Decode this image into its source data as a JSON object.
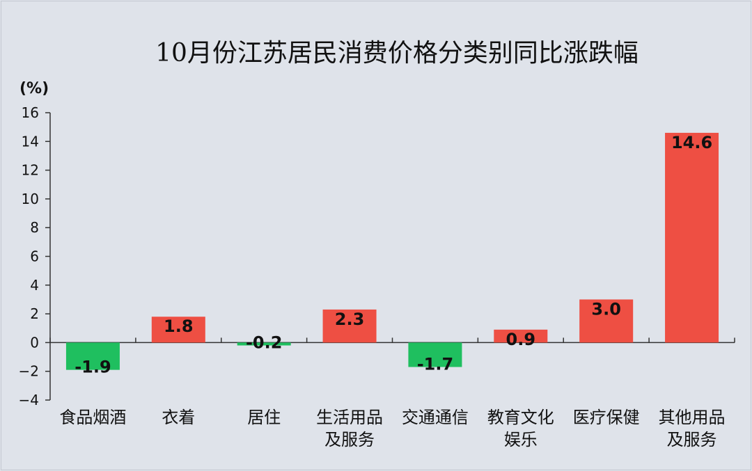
{
  "chart_data": {
    "type": "bar",
    "title": "10月份江苏居民消费价格分类别同比涨跌幅",
    "ylabel": "(%)",
    "ylim": [
      -4,
      16
    ],
    "yticks": [
      "16",
      "14",
      "12",
      "10",
      "8",
      "6",
      "4",
      "2",
      "0",
      "−2",
      "−4"
    ],
    "categories": [
      [
        "食品烟酒"
      ],
      [
        "衣着"
      ],
      [
        "居住"
      ],
      [
        "生活用品",
        "及服务"
      ],
      [
        "交通通信"
      ],
      [
        "教育文化",
        "娱乐"
      ],
      [
        "医疗保健"
      ],
      [
        "其他用品",
        "及服务"
      ]
    ],
    "values": [
      -1.9,
      1.8,
      -0.2,
      2.3,
      -1.7,
      0.9,
      3.0,
      14.6
    ],
    "value_labels": [
      "-1.9",
      "1.8",
      "-0.2",
      "2.3",
      "-1.7",
      "0.9",
      "3.0",
      "14.6"
    ],
    "colors": {
      "positive": "#ee4f43",
      "negative": "#1fbf5f"
    },
    "grid": false,
    "legend": "none"
  }
}
